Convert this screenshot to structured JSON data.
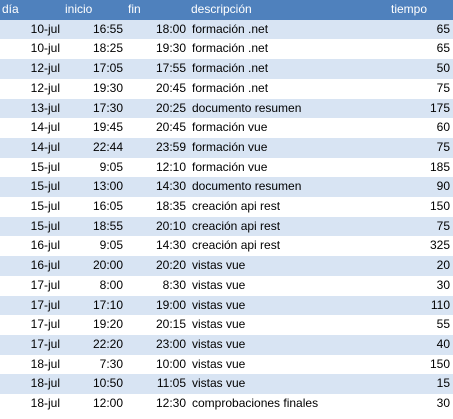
{
  "headers": [
    "día",
    "inicio",
    "fin",
    "descripción",
    "tiempo"
  ],
  "rows": [
    [
      "10-jul",
      "16:55",
      "18:00",
      "formación .net",
      "65"
    ],
    [
      "10-jul",
      "18:25",
      "19:30",
      "formación .net",
      "65"
    ],
    [
      "12-jul",
      "17:05",
      "17:55",
      "formación .net",
      "50"
    ],
    [
      "12-jul",
      "19:30",
      "20:45",
      "formación .net",
      "75"
    ],
    [
      "13-jul",
      "17:30",
      "20:25",
      "documento resumen",
      "175"
    ],
    [
      "14-jul",
      "19:45",
      "20:45",
      "formación vue",
      "60"
    ],
    [
      "14-jul",
      "22:44",
      "23:59",
      "formación vue",
      "75"
    ],
    [
      "15-jul",
      "9:05",
      "12:10",
      "formación vue",
      "185"
    ],
    [
      "15-jul",
      "13:00",
      "14:30",
      "documento resumen",
      "90"
    ],
    [
      "15-jul",
      "16:05",
      "18:35",
      "creación api rest",
      "150"
    ],
    [
      "15-jul",
      "18:55",
      "20:10",
      "creación api rest",
      "75"
    ],
    [
      "16-jul",
      "9:05",
      "14:30",
      "creación api rest",
      "325"
    ],
    [
      "16-jul",
      "20:00",
      "20:20",
      "vistas vue",
      "20"
    ],
    [
      "17-jul",
      "8:00",
      "8:30",
      "vistas vue",
      "30"
    ],
    [
      "17-jul",
      "17:10",
      "19:00",
      "vistas vue",
      "110"
    ],
    [
      "17-jul",
      "19:20",
      "20:15",
      "vistas vue",
      "55"
    ],
    [
      "17-jul",
      "22:20",
      "23:00",
      "vistas vue",
      "40"
    ],
    [
      "18-jul",
      "7:30",
      "10:00",
      "vistas vue",
      "150"
    ],
    [
      "18-jul",
      "10:50",
      "11:05",
      "vistas vue",
      "15"
    ],
    [
      "18-jul",
      "12:00",
      "12:30",
      "comprobaciones finales",
      "30"
    ]
  ]
}
